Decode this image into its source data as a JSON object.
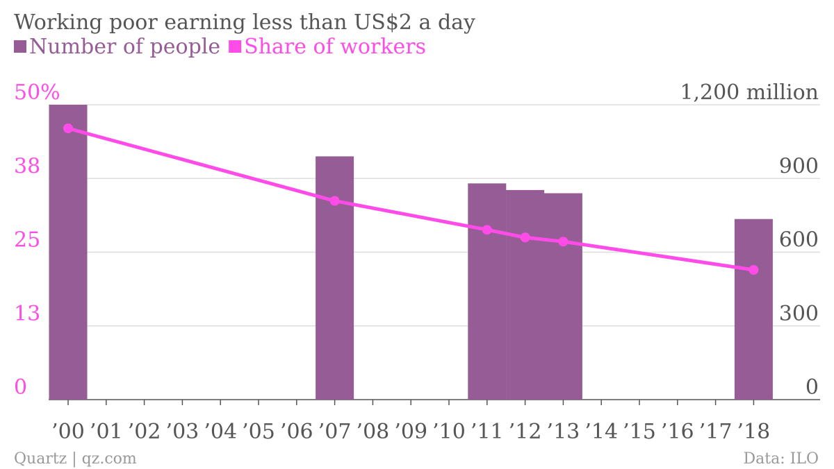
{
  "chart_data": {
    "type": "bar+line",
    "title": "Working poor earning less than US$2 a day",
    "legend": {
      "placement": "top-left"
    },
    "categories": [
      "’00",
      "’01",
      "’02",
      "’03",
      "’04",
      "’05",
      "’06",
      "’07",
      "’08",
      "’09",
      "’10",
      "’11",
      "’12",
      "’13",
      "’14",
      "’15",
      "’16",
      "’17",
      "’18"
    ],
    "series": [
      {
        "name": "Number of people",
        "type": "bar",
        "axis": "right",
        "color": "#955c96",
        "values": [
          1200,
          null,
          null,
          null,
          null,
          null,
          null,
          990,
          null,
          null,
          null,
          880,
          853,
          840,
          null,
          null,
          null,
          null,
          735
        ]
      },
      {
        "name": "Share of workers",
        "type": "line",
        "axis": "left",
        "color": "#ff4ce9",
        "values": [
          46,
          null,
          null,
          null,
          null,
          null,
          null,
          33.7,
          null,
          null,
          null,
          28.8,
          27.5,
          26.8,
          null,
          null,
          null,
          null,
          22
        ]
      }
    ],
    "left_axis": {
      "ticks": [
        "50%",
        "38",
        "25",
        "13",
        "0"
      ],
      "range": [
        0,
        50
      ],
      "color": "#ff4ce9"
    },
    "right_axis": {
      "ticks": [
        "1,200 million",
        "900",
        "600",
        "300",
        "0"
      ],
      "range": [
        0,
        1200
      ],
      "color": "#555555"
    },
    "grid": true,
    "source_left": "Quartz | qz.com",
    "source_right": "Data: ILO"
  }
}
